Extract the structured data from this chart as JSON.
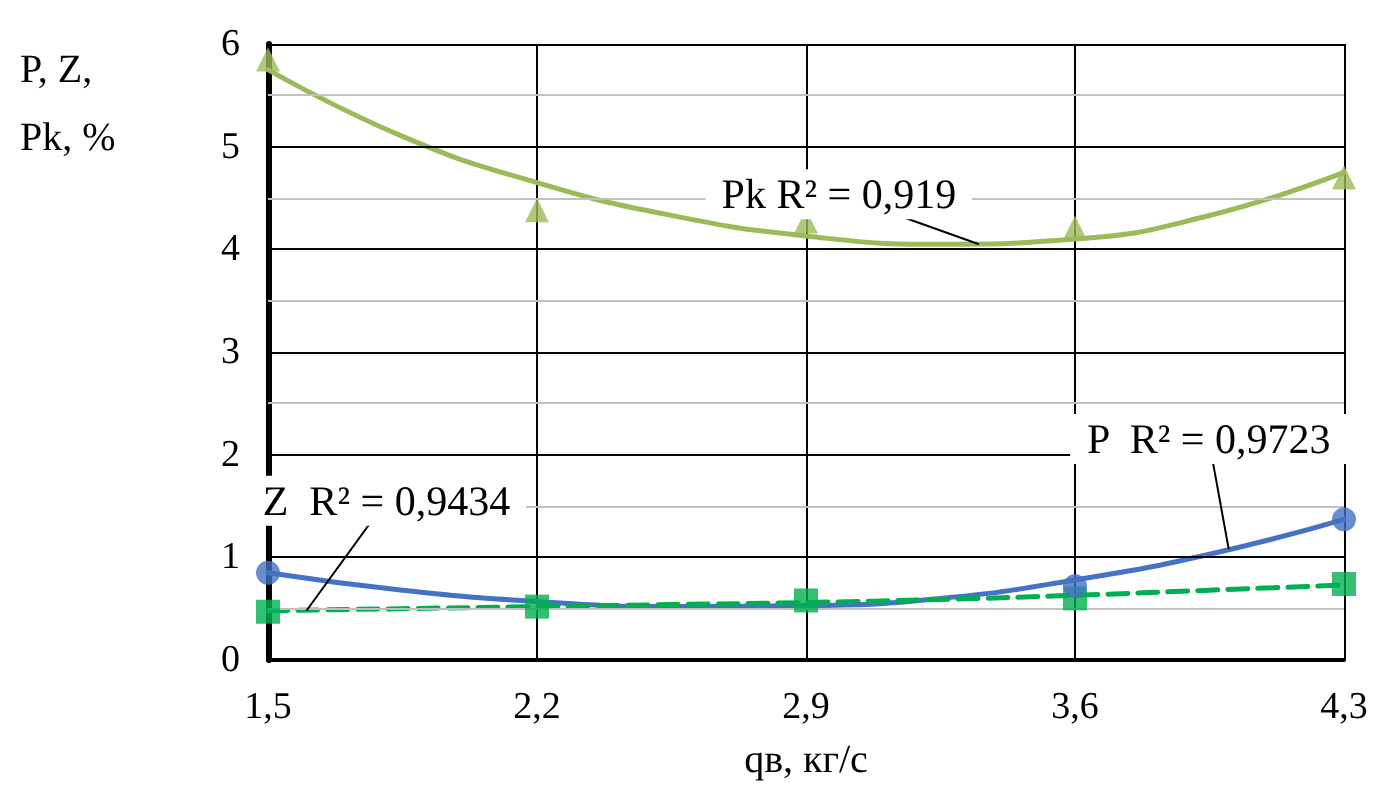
{
  "chart_data": {
    "type": "scatter",
    "xlabel": "qв, кг/с",
    "ylabel": "P, Z, Pk, %",
    "xlim": [
      1.5,
      4.3
    ],
    "xticks": [
      {
        "value": 1.5,
        "label": "1,5"
      },
      {
        "value": 2.2,
        "label": "2,2"
      },
      {
        "value": 2.9,
        "label": "2,9"
      },
      {
        "value": 3.6,
        "label": "3,6"
      },
      {
        "value": 4.3,
        "label": "4,3"
      }
    ],
    "ylim": [
      0,
      6
    ],
    "yticks": [
      0,
      {
        "value": 0.5,
        "label": null
      },
      1,
      {
        "value": 1.5,
        "label": null
      },
      2,
      {
        "value": 2.5,
        "label": null
      },
      3,
      {
        "value": 3.5,
        "label": null
      },
      4,
      {
        "value": 4.5,
        "label": null
      },
      5,
      {
        "value": 5.5,
        "label": null
      },
      6
    ],
    "grid": true,
    "series": [
      {
        "marker": "triangle",
        "color": "#9bbb59",
        "x": [
          1.5,
          2.2,
          2.9,
          3.6,
          4.3
        ],
        "values": [
          5.85,
          4.38,
          4.27,
          4.21,
          4.7
        ]
      },
      {
        "type": "line",
        "marker": "none",
        "line_style": "solid",
        "color": "#9bbb59",
        "x": [
          1.5,
          1.85,
          2.2,
          2.55,
          2.9,
          3.25,
          3.6,
          3.95,
          4.3
        ],
        "values": [
          5.75,
          5.1,
          4.65,
          4.33,
          4.13,
          4.05,
          4.1,
          4.33,
          4.75
        ]
      },
      {
        "marker": "circle",
        "color": "#4472c4",
        "x": [
          1.5,
          2.2,
          2.9,
          3.6,
          4.3
        ],
        "values": [
          0.85,
          null,
          null,
          0.72,
          1.37
        ]
      },
      {
        "type": "line",
        "marker": "none",
        "line_style": "solid",
        "color": "#4472c4",
        "x": [
          1.5,
          1.85,
          2.2,
          2.55,
          2.9,
          3.25,
          3.6,
          3.95,
          4.3
        ],
        "values": [
          0.85,
          0.68,
          0.57,
          0.52,
          0.53,
          0.6,
          0.78,
          1.03,
          1.37
        ]
      },
      {
        "marker": "square",
        "color": "#00b050",
        "x": [
          1.5,
          2.2,
          2.9,
          3.6,
          4.3
        ],
        "values": [
          0.47,
          0.52,
          0.58,
          0.6,
          0.74
        ]
      },
      {
        "type": "line",
        "marker": "none",
        "line_style": "dashed",
        "color": "#00b050",
        "x": [
          1.5,
          1.85,
          2.2,
          2.55,
          2.9,
          3.25,
          3.6,
          3.95,
          4.3
        ],
        "values": [
          0.48,
          0.5,
          0.52,
          0.54,
          0.56,
          0.59,
          0.63,
          0.68,
          0.73
        ]
      }
    ],
    "annotations": [
      {
        "text": "Pk R² = 0,919",
        "x": 3.35,
        "y": 4.05
      },
      {
        "text": "Z  R² = 0,9434",
        "x": 1.6,
        "y": 0.48
      },
      {
        "text": "P  R² = 0,9723",
        "x": 4.0,
        "y": 1.08
      }
    ]
  }
}
